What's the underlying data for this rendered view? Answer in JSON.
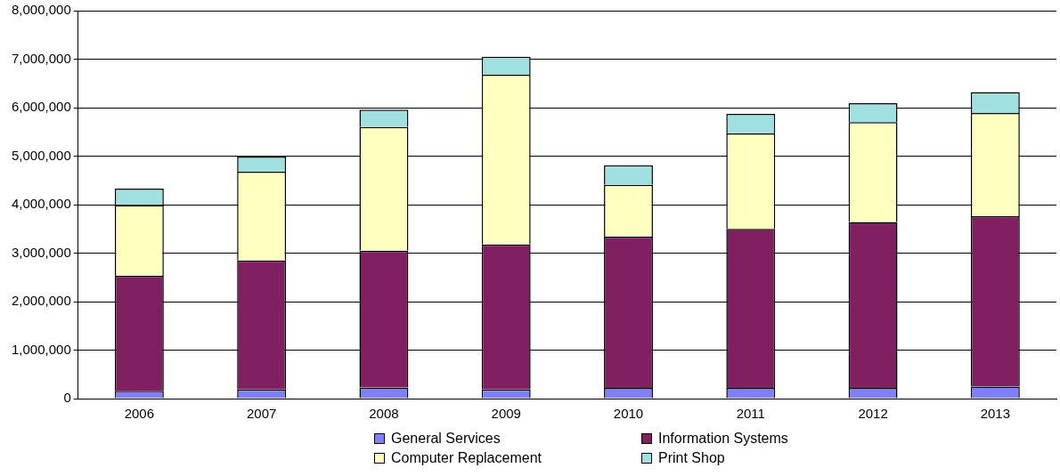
{
  "chart_data": {
    "type": "bar",
    "stacked": true,
    "categories": [
      "2006",
      "2007",
      "2008",
      "2009",
      "2010",
      "2011",
      "2012",
      "2013"
    ],
    "series": [
      {
        "name": "General Services",
        "color": "#8080ff",
        "values": [
          160000,
          190000,
          230000,
          190000,
          220000,
          220000,
          220000,
          250000
        ]
      },
      {
        "name": "Information Systems",
        "color": "#802060",
        "values": [
          2370000,
          2660000,
          2820000,
          2990000,
          3120000,
          3280000,
          3420000,
          3510000
        ]
      },
      {
        "name": "Computer Replacement",
        "color": "#ffffc0",
        "values": [
          1460000,
          1830000,
          2550000,
          3500000,
          1070000,
          1970000,
          2060000,
          2130000
        ]
      },
      {
        "name": "Print Shop",
        "color": "#a0e0e0",
        "values": [
          340000,
          310000,
          360000,
          370000,
          400000,
          400000,
          390000,
          430000
        ]
      }
    ],
    "ylim": [
      0,
      8000000
    ],
    "yticks": [
      0,
      {
        "value": 1000000,
        "label": "1,000,000"
      },
      {
        "value": 2000000,
        "label": "2,000,000"
      },
      {
        "value": 3000000,
        "label": "3,000,000"
      },
      {
        "value": 4000000,
        "label": "4,000,000"
      },
      {
        "value": 5000000,
        "label": "5,000,000"
      },
      {
        "value": 6000000,
        "label": "6,000,000"
      },
      {
        "value": 7000000,
        "label": "7,000,000"
      },
      {
        "value": 8000000,
        "label": "8,000,000"
      }
    ],
    "grid": "y",
    "legend": "bottom"
  }
}
